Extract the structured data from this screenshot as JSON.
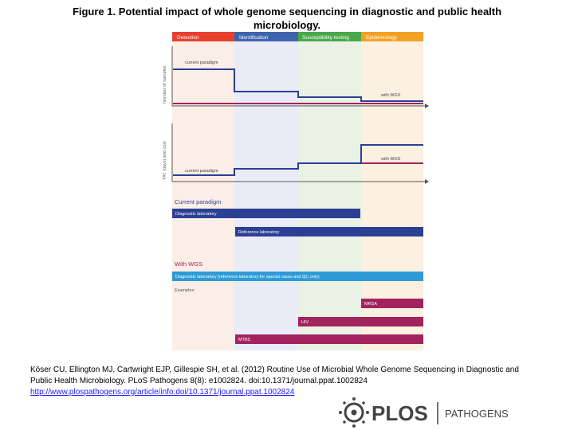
{
  "title": "Figure 1. Potential impact of whole genome sequencing in diagnostic and public health microbiology.",
  "figure": {
    "stages": [
      {
        "label": "Detection",
        "header_color": "#e8402f",
        "bg_color": "#fbeee6"
      },
      {
        "label": "Identification",
        "header_color": "#3f63ad",
        "bg_color": "#e9ecf6"
      },
      {
        "label": "Susceptibility testing",
        "header_color": "#49a84a",
        "bg_color": "#e9f2e5"
      },
      {
        "label": "Epidemiology",
        "header_color": "#f3a124",
        "bg_color": "#fcf0e0"
      }
    ],
    "chart1": {
      "ylabel": "Number of samples",
      "current_label": "current paradigm",
      "wgs_label": "with WGS"
    },
    "chart2": {
      "ylabel": "TAT (days) and cost",
      "current_label": "current paradigm",
      "wgs_label": "with WGS"
    },
    "current_paradigm": {
      "heading": "Current paradigm",
      "bars": [
        {
          "label": "Diagnostic laboratory",
          "color": "#2b3f94"
        },
        {
          "label": "Reference laboratory",
          "color": "#2b3f94"
        }
      ]
    },
    "with_wgs": {
      "heading": "With WGS",
      "bar_label": "Diagnostic laboratory (reference laboratory for special cases and QC only)",
      "bar_color": "#2e9bd6",
      "examples_label": "Examples:",
      "examples": [
        {
          "label": "MRSA",
          "color": "#a3235f"
        },
        {
          "label": "HIV",
          "color": "#a3235f"
        },
        {
          "label": "MTBC",
          "color": "#a3235f"
        }
      ]
    },
    "colors": {
      "current_line": "#2b3f94",
      "wgs_line": "#a3235f"
    }
  },
  "citation": {
    "text": "Köser CU, Ellington MJ, Cartwright EJP, Gillespie SH, et al. (2012) Routine Use of Microbial Whole Genome Sequencing in Diagnostic and Public Health Microbiology. PLoS Pathogens 8(8): e1002824. doi:10.1371/journal.ppat.1002824",
    "url": "http://www.plospathogens.org/article/info:doi/10.1371/journal.ppat.1002824"
  },
  "logo": {
    "brand": "PLOS",
    "journal": "PATHOGENS"
  }
}
